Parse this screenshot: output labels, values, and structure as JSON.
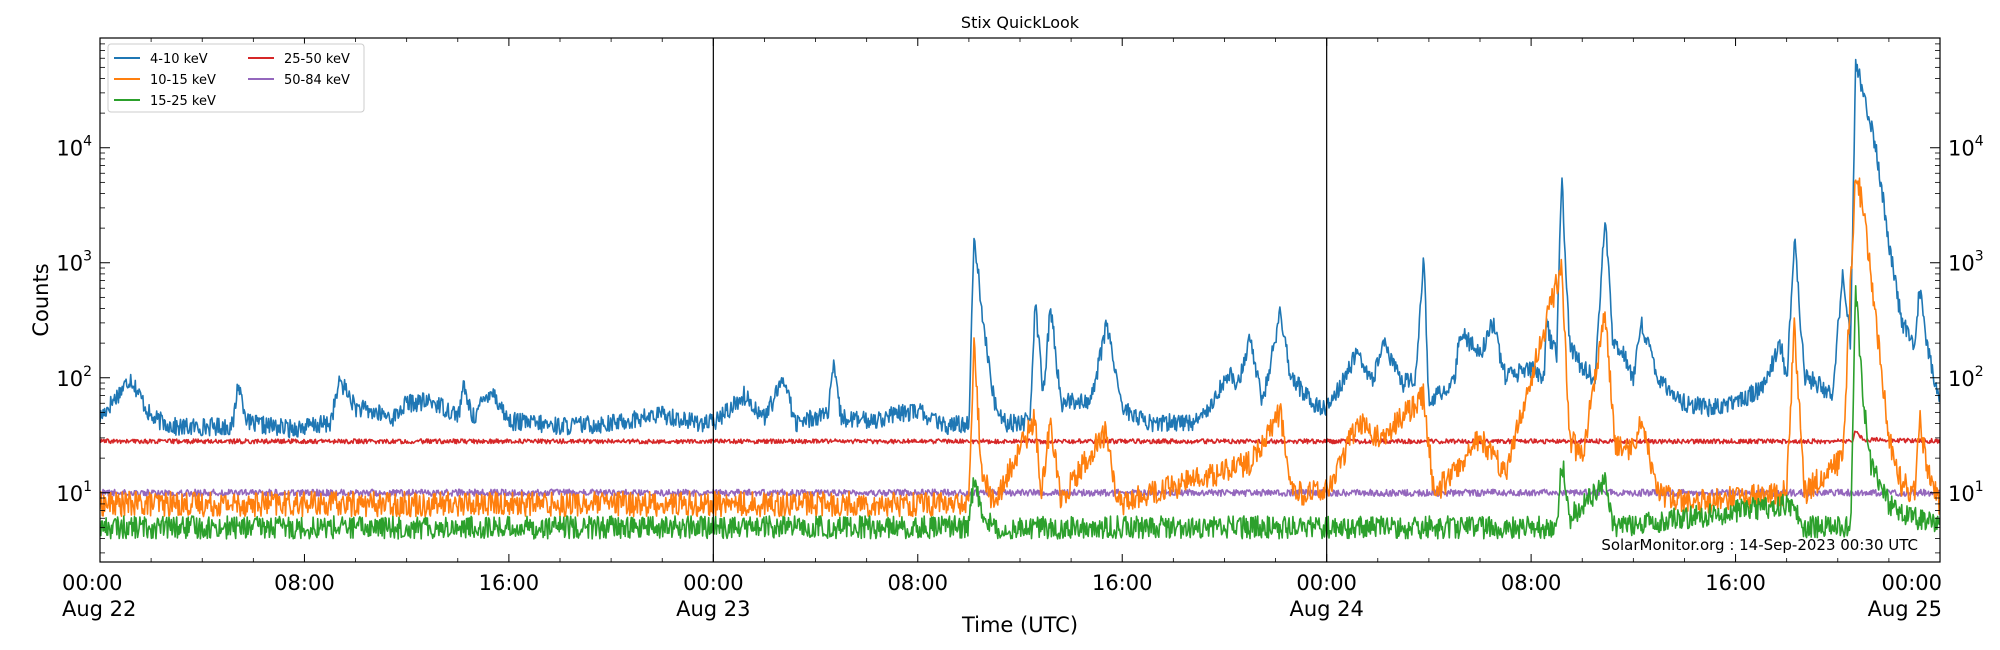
{
  "chart_data": {
    "type": "line",
    "title": "Stix QuickLook",
    "xlabel": "Time (UTC)",
    "ylabel": "Counts",
    "yscale": "log",
    "ylim": [
      2.5,
      90000
    ],
    "x_range_hours": [
      0,
      72
    ],
    "x_ticks": [
      {
        "t": 0,
        "time": "00:00",
        "date": "Aug 22"
      },
      {
        "t": 8,
        "time": "08:00",
        "date": ""
      },
      {
        "t": 16,
        "time": "16:00",
        "date": ""
      },
      {
        "t": 24,
        "time": "00:00",
        "date": "Aug 23"
      },
      {
        "t": 32,
        "time": "08:00",
        "date": ""
      },
      {
        "t": 40,
        "time": "16:00",
        "date": ""
      },
      {
        "t": 48,
        "time": "00:00",
        "date": "Aug 24"
      },
      {
        "t": 56,
        "time": "08:00",
        "date": ""
      },
      {
        "t": 64,
        "time": "16:00",
        "date": ""
      },
      {
        "t": 72,
        "time": "00:00",
        "date": "Aug 25"
      }
    ],
    "y_ticks": [
      {
        "value": 10,
        "label": "10",
        "exp": "1"
      },
      {
        "value": 100,
        "label": "10",
        "exp": "2"
      },
      {
        "value": 1000,
        "label": "10",
        "exp": "3"
      },
      {
        "value": 10000,
        "label": "10",
        "exp": "4"
      }
    ],
    "day_dividers_hours": [
      24,
      48
    ],
    "legend_position": "upper-left",
    "watermark": "SolarMonitor.org : 14-Sep-2023 00:30 UTC",
    "series": [
      {
        "name": "4-10 keV",
        "color": "#1f77b4",
        "baseline": 40,
        "noise": 0.08,
        "points": [
          [
            0,
            45
          ],
          [
            1.2,
            100
          ],
          [
            2,
            45
          ],
          [
            3,
            37
          ],
          [
            5.2,
            38
          ],
          [
            5.4,
            90
          ],
          [
            5.8,
            40
          ],
          [
            7.5,
            36
          ],
          [
            9,
            40
          ],
          [
            9.4,
            95
          ],
          [
            10,
            55
          ],
          [
            11.5,
            45
          ],
          [
            12,
            60
          ],
          [
            13,
            62
          ],
          [
            14,
            48
          ],
          [
            14.1,
            55
          ],
          [
            14.2,
            85
          ],
          [
            14.6,
            45
          ],
          [
            15.3,
            80
          ],
          [
            16,
            42
          ],
          [
            18,
            38
          ],
          [
            20,
            40
          ],
          [
            22,
            48
          ],
          [
            23,
            42
          ],
          [
            24,
            40
          ],
          [
            25.2,
            70
          ],
          [
            26,
            45
          ],
          [
            26.8,
            100
          ],
          [
            27.2,
            40
          ],
          [
            28.5,
            50
          ],
          [
            28.7,
            125
          ],
          [
            29,
            45
          ],
          [
            30,
            42
          ],
          [
            32,
            52
          ],
          [
            33,
            38
          ],
          [
            34,
            40
          ],
          [
            34.2,
            1800
          ],
          [
            34.6,
            250
          ],
          [
            35,
            60
          ],
          [
            35.5,
            40
          ],
          [
            36.4,
            42
          ],
          [
            36.6,
            480
          ],
          [
            36.9,
            70
          ],
          [
            37.2,
            420
          ],
          [
            37.6,
            60
          ],
          [
            38.8,
            65
          ],
          [
            39.4,
            300
          ],
          [
            40,
            55
          ],
          [
            41,
            40
          ],
          [
            43,
            42
          ],
          [
            44.2,
            110
          ],
          [
            44.5,
            80
          ],
          [
            45,
            230
          ],
          [
            45.5,
            60
          ],
          [
            46.2,
            380
          ],
          [
            46.6,
            100
          ],
          [
            47.5,
            60
          ],
          [
            48,
            55
          ],
          [
            48.5,
            80
          ],
          [
            49.2,
            170
          ],
          [
            49.8,
            90
          ],
          [
            50.2,
            200
          ],
          [
            51,
            90
          ],
          [
            51.5,
            100
          ],
          [
            51.8,
            1200
          ],
          [
            52,
            60
          ],
          [
            53,
            90
          ],
          [
            53.2,
            250
          ],
          [
            54,
            160
          ],
          [
            54.5,
            300
          ],
          [
            55,
            100
          ],
          [
            56,
            120
          ],
          [
            56.5,
            100
          ],
          [
            56.6,
            300
          ],
          [
            56.8,
            200
          ],
          [
            57,
            160
          ],
          [
            57.2,
            5500
          ],
          [
            57.5,
            200
          ],
          [
            58,
            120
          ],
          [
            58.5,
            100
          ],
          [
            58.9,
            2500
          ],
          [
            59.2,
            200
          ],
          [
            59.6,
            160
          ],
          [
            60,
            100
          ],
          [
            60.3,
            300
          ],
          [
            61,
            100
          ],
          [
            62,
            60
          ],
          [
            63,
            55
          ],
          [
            64,
            60
          ],
          [
            65,
            80
          ],
          [
            65.8,
            200
          ],
          [
            66,
            90
          ],
          [
            66.3,
            1700
          ],
          [
            66.7,
            100
          ],
          [
            67,
            95
          ],
          [
            67.8,
            70
          ],
          [
            68.2,
            900
          ],
          [
            68.5,
            200
          ],
          [
            68.7,
            58000
          ],
          [
            69,
            30000
          ],
          [
            69.5,
            10000
          ],
          [
            70,
            1500
          ],
          [
            70.5,
            300
          ],
          [
            71,
            200
          ],
          [
            71.2,
            600
          ],
          [
            71.5,
            180
          ],
          [
            72,
            60
          ],
          [
            72.4,
            52
          ]
        ]
      },
      {
        "name": "10-15 keV",
        "color": "#ff7f0e",
        "baseline": 8,
        "noise": 0.11,
        "points": [
          [
            0,
            8
          ],
          [
            34,
            8
          ],
          [
            34.2,
            200
          ],
          [
            34.5,
            15
          ],
          [
            35,
            8
          ],
          [
            36.6,
            45
          ],
          [
            36.8,
            9
          ],
          [
            37.2,
            42
          ],
          [
            37.6,
            9
          ],
          [
            39.4,
            35
          ],
          [
            39.8,
            8
          ],
          [
            45,
            18
          ],
          [
            46.2,
            50
          ],
          [
            46.6,
            10
          ],
          [
            48,
            10
          ],
          [
            49.2,
            40
          ],
          [
            50.2,
            30
          ],
          [
            51.8,
            70
          ],
          [
            52.2,
            10
          ],
          [
            53,
            15
          ],
          [
            54,
            30
          ],
          [
            55,
            15
          ],
          [
            57.2,
            950
          ],
          [
            57.5,
            30
          ],
          [
            58,
            20
          ],
          [
            58.9,
            350
          ],
          [
            59.3,
            25
          ],
          [
            60,
            25
          ],
          [
            60.3,
            40
          ],
          [
            61,
            10
          ],
          [
            62,
            8
          ],
          [
            66,
            10
          ],
          [
            66.3,
            300
          ],
          [
            66.7,
            10
          ],
          [
            68.2,
            20
          ],
          [
            68.7,
            6500
          ],
          [
            69,
            2800
          ],
          [
            69.5,
            300
          ],
          [
            70,
            30
          ],
          [
            70.5,
            12
          ],
          [
            71,
            10
          ],
          [
            71.2,
            50
          ],
          [
            71.5,
            15
          ],
          [
            72,
            8
          ],
          [
            72.4,
            8
          ]
        ]
      },
      {
        "name": "15-25 keV",
        "color": "#2ca02c",
        "baseline": 5,
        "noise": 0.1,
        "points": [
          [
            0,
            5
          ],
          [
            34,
            5
          ],
          [
            34.2,
            14
          ],
          [
            34.6,
            6
          ],
          [
            35,
            5
          ],
          [
            57,
            5
          ],
          [
            57.2,
            20
          ],
          [
            57.5,
            6
          ],
          [
            58.9,
            12
          ],
          [
            59.2,
            5
          ],
          [
            66.3,
            8
          ],
          [
            66.6,
            5
          ],
          [
            68.5,
            5
          ],
          [
            68.7,
            600
          ],
          [
            69,
            60
          ],
          [
            69.3,
            18
          ],
          [
            70,
            8
          ],
          [
            71,
            6
          ],
          [
            72,
            5
          ],
          [
            72.4,
            5
          ]
        ]
      },
      {
        "name": "25-50 keV",
        "color": "#d62728",
        "baseline": 28,
        "noise": 0.02,
        "points": [
          [
            0,
            28
          ],
          [
            68.6,
            28
          ],
          [
            68.7,
            35
          ],
          [
            69,
            29
          ],
          [
            72.4,
            28
          ]
        ]
      },
      {
        "name": "50-84 keV",
        "color": "#9467bd",
        "baseline": 10,
        "noise": 0.03,
        "points": [
          [
            0,
            10
          ],
          [
            72.4,
            10
          ]
        ]
      }
    ]
  }
}
